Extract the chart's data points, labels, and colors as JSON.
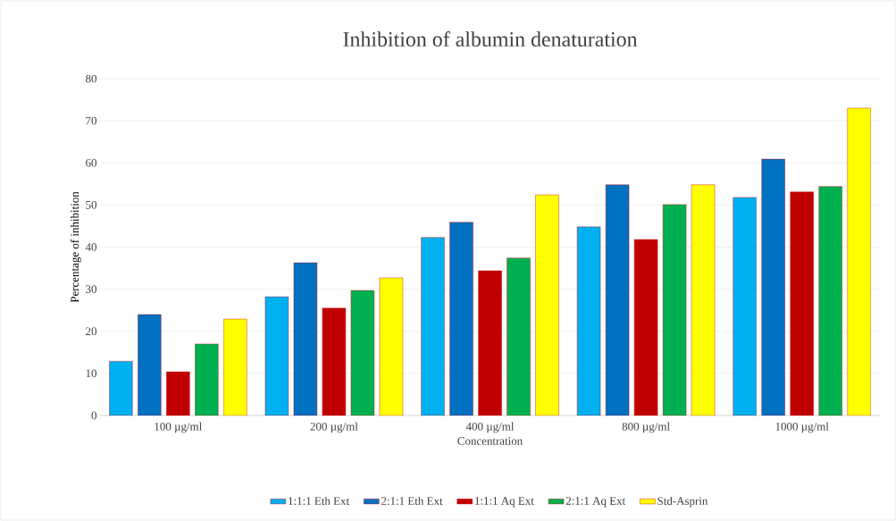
{
  "chart_data": {
    "type": "bar",
    "title": "Inhibition of albumin denaturation",
    "xlabel": "Concentration",
    "ylabel": "Percentage of inhibition",
    "categories": [
      "100 µg/ml",
      "200 µg/ml",
      "400 µg/ml",
      "800 µg/ml",
      "1000 µg/ml"
    ],
    "series": [
      {
        "name": "1:1:1 Eth Ext",
        "color": "#00b0f0",
        "values": [
          12.9,
          28.2,
          42.3,
          44.8,
          51.8
        ]
      },
      {
        "name": "2:1:1 Eth Ext",
        "color": "#0070c0",
        "values": [
          24,
          36.3,
          45.9,
          54.8,
          60.9
        ]
      },
      {
        "name": "1:1:1 Aq Ext",
        "color": "#c00000",
        "values": [
          10.4,
          25.5,
          34.4,
          41.8,
          53.1
        ]
      },
      {
        "name": "2:1:1 Aq Ext",
        "color": "#00b050",
        "values": [
          17,
          29.7,
          37.4,
          50.1,
          54.4
        ]
      },
      {
        "name": "Std-Asprin",
        "color": "#ffff00",
        "values": [
          22.9,
          32.7,
          52.4,
          54.8,
          73
        ]
      }
    ],
    "ylim": [
      0,
      80
    ],
    "yticks": [
      0,
      10,
      20,
      30,
      40,
      50,
      60,
      70,
      80
    ],
    "grid": "y",
    "legend": "bottom"
  }
}
